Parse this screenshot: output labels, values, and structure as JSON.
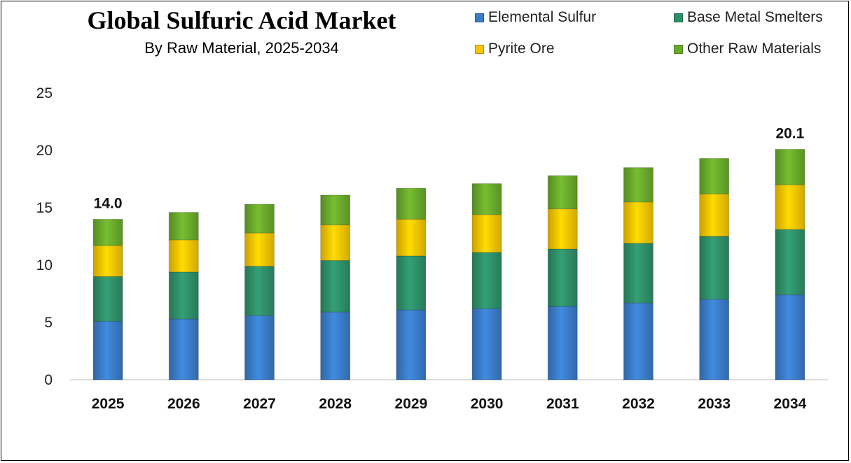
{
  "colors": {
    "elemental_sulfur": "#3a7cc8",
    "base_metal_smelters": "#2e8f69",
    "pyrite_ore": "#f7c400",
    "other_raw_materials": "#6aaa2b"
  },
  "chart_data": {
    "type": "bar",
    "stacked": true,
    "title": "Global Sulfuric Acid Market",
    "subtitle": "By Raw Material, 2025-2034",
    "xlabel": "",
    "ylabel": "",
    "ylim": [
      0,
      25
    ],
    "yticks": [
      0,
      5,
      10,
      15,
      20,
      25
    ],
    "categories": [
      "2025",
      "2026",
      "2027",
      "2028",
      "2029",
      "2030",
      "2031",
      "2032",
      "2033",
      "2034"
    ],
    "series": [
      {
        "name": "Elemental Sulfur",
        "color_key": "elemental_sulfur",
        "values": [
          5.1,
          5.3,
          5.6,
          5.9,
          6.1,
          6.2,
          6.4,
          6.7,
          7.0,
          7.4
        ]
      },
      {
        "name": "Base Metal Smelters",
        "color_key": "base_metal_smelters",
        "values": [
          3.9,
          4.1,
          4.3,
          4.5,
          4.7,
          4.9,
          5.0,
          5.2,
          5.5,
          5.7
        ]
      },
      {
        "name": "Pyrite Ore",
        "color_key": "pyrite_ore",
        "values": [
          2.7,
          2.8,
          2.9,
          3.1,
          3.2,
          3.3,
          3.5,
          3.6,
          3.7,
          3.9
        ]
      },
      {
        "name": "Other Raw Materials",
        "color_key": "other_raw_materials",
        "values": [
          2.3,
          2.4,
          2.5,
          2.6,
          2.7,
          2.7,
          2.9,
          3.0,
          3.1,
          3.1
        ]
      }
    ],
    "data_labels": [
      {
        "category": "2025",
        "text": "14.0"
      },
      {
        "category": "2034",
        "text": "20.1"
      }
    ],
    "legend_position": "top-right",
    "grid": false
  }
}
